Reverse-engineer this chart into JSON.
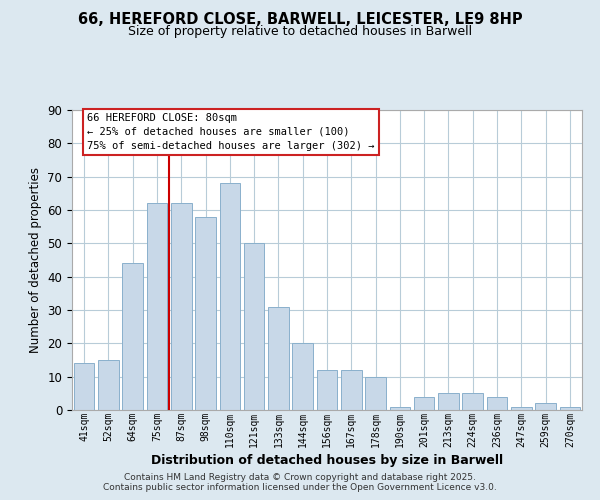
{
  "title_line1": "66, HEREFORD CLOSE, BARWELL, LEICESTER, LE9 8HP",
  "title_line2": "Size of property relative to detached houses in Barwell",
  "xlabel": "Distribution of detached houses by size in Barwell",
  "ylabel": "Number of detached properties",
  "bar_labels": [
    "41sqm",
    "52sqm",
    "64sqm",
    "75sqm",
    "87sqm",
    "98sqm",
    "110sqm",
    "121sqm",
    "133sqm",
    "144sqm",
    "156sqm",
    "167sqm",
    "178sqm",
    "190sqm",
    "201sqm",
    "213sqm",
    "224sqm",
    "236sqm",
    "247sqm",
    "259sqm",
    "270sqm"
  ],
  "bar_values": [
    14,
    15,
    44,
    62,
    62,
    58,
    68,
    50,
    31,
    20,
    12,
    12,
    10,
    1,
    4,
    5,
    5,
    4,
    1,
    2,
    1
  ],
  "bar_color": "#c8d8e8",
  "bar_edgecolor": "#8ab0cc",
  "ylim": [
    0,
    90
  ],
  "yticks": [
    0,
    10,
    20,
    30,
    40,
    50,
    60,
    70,
    80,
    90
  ],
  "vline_x": 3.5,
  "vline_color": "#cc0000",
  "annotation_title": "66 HEREFORD CLOSE: 80sqm",
  "annotation_line1": "← 25% of detached houses are smaller (100)",
  "annotation_line2": "75% of semi-detached houses are larger (302) →",
  "footer_line1": "Contains HM Land Registry data © Crown copyright and database right 2025.",
  "footer_line2": "Contains public sector information licensed under the Open Government Licence v3.0.",
  "bg_color": "#dce8f0",
  "plot_bg_color": "#ffffff",
  "grid_color": "#b8ccd8"
}
